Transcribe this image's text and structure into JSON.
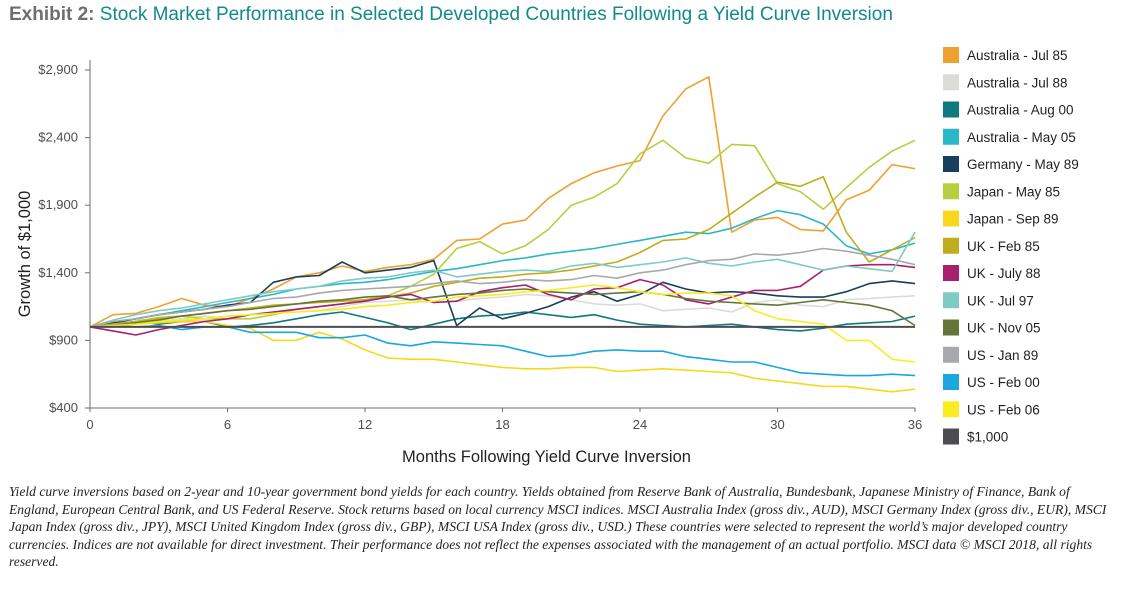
{
  "title": {
    "prefix": "Exhibit 2:",
    "text": "Stock Market Performance in Selected Developed Countries Following a Yield Curve Inversion"
  },
  "footnote": "Yield curve inversions based on 2-year and 10-year government bond yields for each country. Yields obtained from Reserve Bank of Australia, Bundesbank, Japanese Ministry of Finance, Bank of England, European Central Bank, and US Federal Reserve. Stock returns based on local currency MSCI indices. MSCI Australia Index (gross div., AUD), MSCI Germany Index (gross div., EUR), MSCI Japan Index (gross div., JPY), MSCI United Kingdom Index (gross div., GBP), MSCI USA Index (gross div., USD.) These countries were selected to represent the world’s major developed country currencies. Indices are not available for direct investment. Their performance does not reflect the expenses associated with the management of an actual portfolio. MSCI data © MSCI 2018, all rights reserved.",
  "chart_data": {
    "type": "line",
    "xlabel": "Months Following Yield Curve Inversion",
    "ylabel": "Growth of $1,000",
    "xlim": [
      0,
      36
    ],
    "ylim": [
      400,
      2900
    ],
    "x_ticks": [
      "0",
      "6",
      "12",
      "18",
      "24",
      "30",
      "36"
    ],
    "y_ticks": [
      {
        "value": 400,
        "label": "$400"
      },
      {
        "value": 900,
        "label": "$900"
      },
      {
        "value": 1400,
        "label": "$1,400"
      },
      {
        "value": 1900,
        "label": "$1,900"
      },
      {
        "value": 2400,
        "label": "$2,400"
      },
      {
        "value": 2900,
        "label": "$2,900"
      }
    ],
    "grid": false,
    "legend_position": "right",
    "x": [
      0,
      1,
      2,
      3,
      4,
      5,
      6,
      7,
      8,
      9,
      10,
      11,
      12,
      13,
      14,
      15,
      16,
      17,
      18,
      19,
      20,
      21,
      22,
      23,
      24,
      25,
      26,
      27,
      28,
      29,
      30,
      31,
      32,
      33,
      34,
      35,
      36
    ],
    "series": [
      {
        "name": "Australia - Jul 85",
        "color": "#f0a030",
        "values": [
          1000,
          1090,
          1100,
          1150,
          1210,
          1160,
          1150,
          1210,
          1280,
          1370,
          1400,
          1450,
          1410,
          1440,
          1460,
          1500,
          1640,
          1650,
          1760,
          1790,
          1950,
          2060,
          2140,
          2190,
          2230,
          2560,
          2760,
          2850,
          1700,
          1790,
          1810,
          1720,
          1710,
          1940,
          2010,
          2200,
          2170
        ]
      },
      {
        "name": "Australia - Jul 88",
        "color": "#dcdcd6",
        "values": [
          1000,
          1020,
          1060,
          1040,
          1060,
          1080,
          1060,
          1090,
          1100,
          1110,
          1120,
          1150,
          1180,
          1190,
          1200,
          1180,
          1190,
          1210,
          1220,
          1240,
          1230,
          1200,
          1170,
          1160,
          1170,
          1120,
          1130,
          1140,
          1110,
          1180,
          1200,
          1160,
          1150,
          1200,
          1210,
          1220,
          1230
        ]
      },
      {
        "name": "Australia - Aug 00",
        "color": "#0f7a7e",
        "values": [
          1000,
          1020,
          1040,
          1020,
          1040,
          1040,
          1000,
          1010,
          1030,
          1060,
          1090,
          1110,
          1070,
          1030,
          980,
          1020,
          1060,
          1080,
          1090,
          1110,
          1090,
          1070,
          1090,
          1050,
          1020,
          1010,
          1000,
          1010,
          1020,
          1000,
          980,
          970,
          990,
          1020,
          1030,
          1040,
          1080
        ]
      },
      {
        "name": "Australia - May 05",
        "color": "#2ab7c8",
        "values": [
          1000,
          1030,
          1060,
          1090,
          1120,
          1150,
          1180,
          1210,
          1240,
          1280,
          1300,
          1320,
          1330,
          1350,
          1380,
          1410,
          1430,
          1460,
          1490,
          1510,
          1540,
          1560,
          1580,
          1610,
          1640,
          1670,
          1700,
          1690,
          1730,
          1800,
          1860,
          1830,
          1760,
          1600,
          1540,
          1570,
          1620
        ]
      },
      {
        "name": "Germany - May 89",
        "color": "#173f5f",
        "values": [
          1000,
          1030,
          1060,
          1090,
          1110,
          1130,
          1160,
          1180,
          1330,
          1370,
          1380,
          1480,
          1400,
          1420,
          1440,
          1490,
          1010,
          1140,
          1060,
          1100,
          1150,
          1220,
          1260,
          1190,
          1240,
          1330,
          1280,
          1250,
          1260,
          1250,
          1230,
          1220,
          1220,
          1260,
          1320,
          1340,
          1320
        ]
      },
      {
        "name": "Japan - May 85",
        "color": "#b6cf3e",
        "values": [
          1000,
          1020,
          1040,
          1070,
          1080,
          1060,
          1060,
          1060,
          1090,
          1130,
          1150,
          1170,
          1200,
          1230,
          1300,
          1390,
          1580,
          1630,
          1540,
          1600,
          1720,
          1900,
          1960,
          2060,
          2280,
          2380,
          2250,
          2210,
          2350,
          2340,
          2060,
          2000,
          1870,
          2030,
          2180,
          2300,
          2380
        ]
      },
      {
        "name": "Japan - Sep 89",
        "color": "#f7d81c",
        "values": [
          1000,
          1010,
          1020,
          1030,
          1040,
          1040,
          1010,
          990,
          900,
          900,
          960,
          910,
          830,
          770,
          760,
          760,
          740,
          720,
          700,
          690,
          690,
          700,
          700,
          670,
          680,
          690,
          680,
          670,
          660,
          620,
          600,
          580,
          560,
          560,
          540,
          520,
          540
        ]
      },
      {
        "name": "UK - Feb 85",
        "color": "#c0ad1d",
        "values": [
          1000,
          1020,
          1040,
          1060,
          1080,
          1100,
          1120,
          1140,
          1160,
          1170,
          1180,
          1190,
          1200,
          1220,
          1250,
          1300,
          1330,
          1360,
          1370,
          1390,
          1400,
          1420,
          1450,
          1480,
          1550,
          1640,
          1650,
          1720,
          1840,
          1960,
          2070,
          2040,
          2110,
          1700,
          1480,
          1570,
          1660
        ]
      },
      {
        "name": "UK - July 88",
        "color": "#a81f6e",
        "values": [
          1000,
          970,
          940,
          980,
          1010,
          1040,
          1060,
          1090,
          1110,
          1130,
          1150,
          1170,
          1190,
          1220,
          1240,
          1180,
          1190,
          1260,
          1290,
          1310,
          1240,
          1200,
          1280,
          1290,
          1350,
          1310,
          1200,
          1170,
          1220,
          1270,
          1270,
          1300,
          1420,
          1450,
          1460,
          1460,
          1440
        ]
      },
      {
        "name": "UK - Jul 97",
        "color": "#7fcbc4",
        "values": [
          1000,
          1050,
          1090,
          1120,
          1140,
          1170,
          1200,
          1230,
          1260,
          1280,
          1300,
          1340,
          1360,
          1370,
          1400,
          1420,
          1370,
          1390,
          1410,
          1420,
          1410,
          1450,
          1470,
          1440,
          1460,
          1480,
          1510,
          1470,
          1450,
          1480,
          1500,
          1460,
          1420,
          1450,
          1430,
          1410,
          1700
        ]
      },
      {
        "name": "UK - Nov 05",
        "color": "#657538",
        "values": [
          1000,
          1010,
          1030,
          1050,
          1080,
          1100,
          1120,
          1130,
          1150,
          1170,
          1190,
          1200,
          1220,
          1230,
          1200,
          1220,
          1240,
          1250,
          1270,
          1280,
          1260,
          1250,
          1240,
          1250,
          1260,
          1240,
          1210,
          1190,
          1180,
          1170,
          1160,
          1180,
          1200,
          1180,
          1160,
          1120,
          1010
        ]
      },
      {
        "name": "US - Jan 89",
        "color": "#a7a9ac",
        "values": [
          1000,
          1040,
          1060,
          1090,
          1110,
          1130,
          1150,
          1180,
          1210,
          1220,
          1250,
          1270,
          1280,
          1290,
          1300,
          1320,
          1340,
          1320,
          1330,
          1350,
          1340,
          1350,
          1380,
          1360,
          1400,
          1420,
          1460,
          1490,
          1500,
          1540,
          1530,
          1550,
          1580,
          1560,
          1530,
          1500,
          1460
        ]
      },
      {
        "name": "US - Feb 00",
        "color": "#1ba6e0",
        "values": [
          1000,
          1010,
          1000,
          1010,
          980,
          1000,
          1000,
          960,
          960,
          960,
          920,
          920,
          940,
          880,
          860,
          890,
          880,
          870,
          860,
          820,
          780,
          790,
          820,
          830,
          820,
          820,
          780,
          760,
          740,
          740,
          700,
          660,
          650,
          640,
          640,
          650,
          640
        ]
      },
      {
        "name": "US - Feb 06",
        "color": "#faec1e",
        "values": [
          1000,
          1010,
          1020,
          1040,
          1050,
          1060,
          1080,
          1090,
          1100,
          1110,
          1120,
          1130,
          1150,
          1160,
          1180,
          1190,
          1220,
          1230,
          1240,
          1260,
          1270,
          1290,
          1310,
          1290,
          1260,
          1240,
          1250,
          1250,
          1230,
          1120,
          1060,
          1040,
          1020,
          900,
          900,
          760,
          740
        ]
      },
      {
        "name": "$1,000",
        "color": "#4d4d4f",
        "values": [
          1000,
          1000,
          1000,
          1000,
          1000,
          1000,
          1000,
          1000,
          1000,
          1000,
          1000,
          1000,
          1000,
          1000,
          1000,
          1000,
          1000,
          1000,
          1000,
          1000,
          1000,
          1000,
          1000,
          1000,
          1000,
          1000,
          1000,
          1000,
          1000,
          1000,
          1000,
          1000,
          1000,
          1000,
          1000,
          1000,
          1000
        ]
      }
    ]
  }
}
